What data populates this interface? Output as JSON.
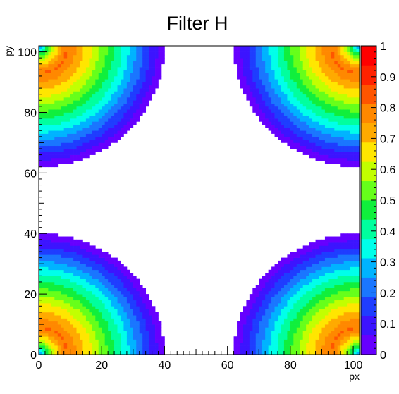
{
  "chart_data": {
    "type": "heatmap",
    "title": "Filter H",
    "xlabel": "px",
    "ylabel": "py",
    "xlim": [
      0,
      102
    ],
    "ylim": [
      0,
      102
    ],
    "zlim": [
      0,
      1
    ],
    "x_ticks": [
      "0",
      "20",
      "40",
      "60",
      "80",
      "100"
    ],
    "y_ticks": [
      "0",
      "20",
      "40",
      "60",
      "80",
      "100"
    ],
    "z_ticks": [
      "0",
      "0.1",
      "0.2",
      "0.3",
      "0.4",
      "0.5",
      "0.6",
      "0.7",
      "0.8",
      "0.9",
      "1"
    ],
    "bins": [
      102,
      102
    ],
    "model": {
      "description_of_values": "radial response around each corner",
      "corners": [
        [
          0,
          0
        ],
        [
          102,
          0
        ],
        [
          0,
          102
        ],
        [
          102,
          102
        ]
      ],
      "cutoff_radius": 40,
      "peak_radius": 9,
      "peak_value": 0.82,
      "empty_region_value": 0
    },
    "palette": [
      "#6600ff",
      "#3c14ff",
      "#1f3dff",
      "#1a76ff",
      "#00b3ff",
      "#00ffea",
      "#00ff9e",
      "#10ef3c",
      "#66ff1a",
      "#c2ff00",
      "#ffe600",
      "#ffaa00",
      "#ff8800",
      "#ff5500",
      "#ff2200",
      "#ff0000"
    ]
  }
}
